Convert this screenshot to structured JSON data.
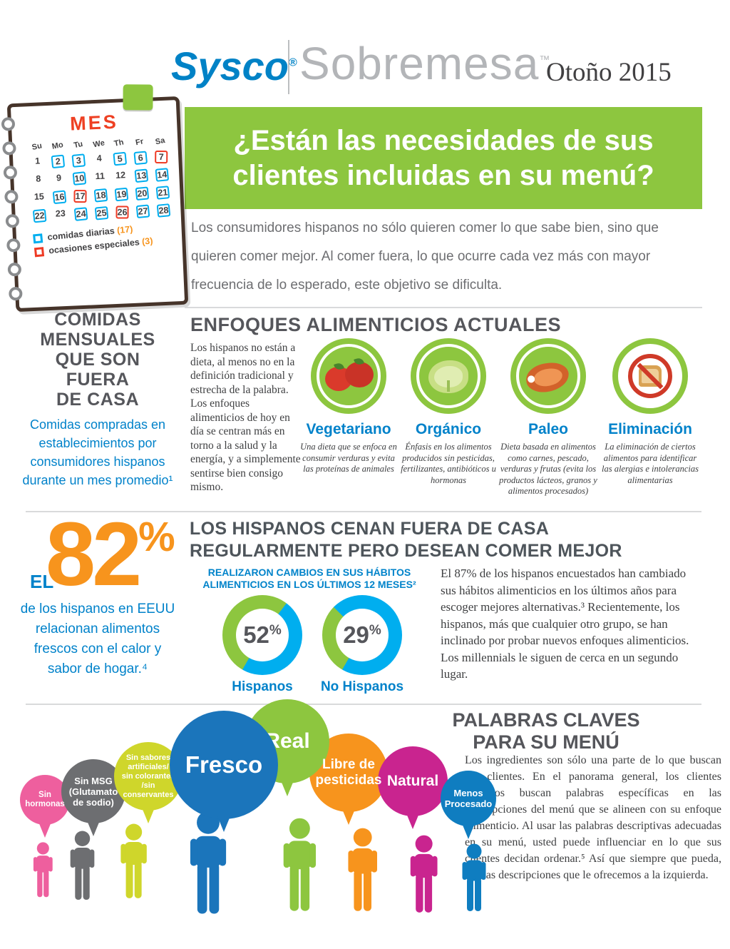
{
  "header": {
    "brand": "Sysco",
    "brand_reg": "®",
    "wordmark": "Sobremesa",
    "wordmark_tm": "™",
    "edition": "Otoño 2015",
    "banner_title": "¿Están las necesidades de sus\nclientes incluidas en su menú?",
    "banner_color": "#8dc63f"
  },
  "calendar": {
    "title": "MES",
    "day_headers": [
      "Su",
      "Mo",
      "Tu",
      "We",
      "Th",
      "Fr",
      "Sa"
    ],
    "days": [
      {
        "n": 1,
        "m": "-"
      },
      {
        "n": 2,
        "m": "b"
      },
      {
        "n": 3,
        "m": "b"
      },
      {
        "n": 4,
        "m": "-"
      },
      {
        "n": 5,
        "m": "b"
      },
      {
        "n": 6,
        "m": "b"
      },
      {
        "n": 7,
        "m": "r"
      },
      {
        "n": 8,
        "m": "-"
      },
      {
        "n": 9,
        "m": "-"
      },
      {
        "n": 10,
        "m": "b"
      },
      {
        "n": 11,
        "m": "-"
      },
      {
        "n": 12,
        "m": "-"
      },
      {
        "n": 13,
        "m": "b"
      },
      {
        "n": 14,
        "m": "b"
      },
      {
        "n": 15,
        "m": "-"
      },
      {
        "n": 16,
        "m": "b"
      },
      {
        "n": 17,
        "m": "r"
      },
      {
        "n": 18,
        "m": "b"
      },
      {
        "n": 19,
        "m": "b"
      },
      {
        "n": 20,
        "m": "b"
      },
      {
        "n": 21,
        "m": "b"
      },
      {
        "n": 22,
        "m": "b"
      },
      {
        "n": 23,
        "m": "-"
      },
      {
        "n": 24,
        "m": "b"
      },
      {
        "n": 25,
        "m": "b"
      },
      {
        "n": 26,
        "m": "r"
      },
      {
        "n": 27,
        "m": "b"
      },
      {
        "n": 28,
        "m": "b"
      }
    ],
    "mark_colors": {
      "blue": "#00aeef",
      "red": "#ee3a24"
    },
    "legend": [
      {
        "label": "comidas diarias",
        "count": "(17)",
        "color": "#00aeef"
      },
      {
        "label": "ocasiones especiales",
        "count": "(3)",
        "color": "#ee3a24"
      }
    ]
  },
  "intro": {
    "text": "Los consumidores hispanos no sólo quieren comer lo que sabe bien, sino que quieren comer mejor.  Al comer fuera, lo que ocurre cada vez más con mayor frecuencia de lo esperado, este objetivo se dificulta."
  },
  "left_column": {
    "heading": "COMIDAS\nMENSUALES\nQUE SON\nFUERA\nDE CASA",
    "subtext": "Comidas compradas en establecimientos por consumidores hispanos durante un mes promedio¹"
  },
  "enfoques": {
    "heading": "ENFOQUES ALIMENTICIOS ACTUALES",
    "paragraph": "Los hispanos no están a dieta, al menos no en la definición tradicional y estrecha de la palabra. Los enfoques alimenticios de hoy en día se centran más en torno a la salud y la energía, y a simplemente sentirse bien consigo mismo.",
    "items": [
      {
        "label": "Vegetariano",
        "icon": "tomato-icon",
        "desc": "Una dieta que se enfoca en consumir verduras y evita las proteínas de animales"
      },
      {
        "label": "Orgánico",
        "icon": "lettuce-icon",
        "desc": "Énfasis en los alimentos producidos sin pesticidas, fertilizantes, antibióticos u hormonas"
      },
      {
        "label": "Paleo",
        "icon": "meat-icon",
        "desc": "Dieta basada en alimentos como carnes, pescado, verduras y frutas (evita los productos lácteos, granos y alimentos procesados)"
      },
      {
        "label": "Eliminación",
        "icon": "no-bread-icon",
        "desc": "La eliminación de ciertos alimentos para identificar las alergias e intolerancias alimentarias"
      }
    ]
  },
  "stat82": {
    "prefix": "EL",
    "value": "82",
    "percent": "%",
    "text": "de los hispanos en EEUU relacionan alimentos frescos con el calor y sabor de hogar.⁴",
    "color": "#f7941d"
  },
  "dining": {
    "heading": "LOS HISPANOS CENAN FUERA DE CASA\nREGULARMENTE PERO DESEAN COMER MEJOR",
    "paragraph": "El 87% de los hispanos encuestados han cambiado sus hábitos alimenticios en los últimos años para escoger mejores alternativas.³ Recientemente, los hispanos, más que cualquier otro grupo, se han inclinado por probar nuevos enfoques alimenticios. Los millennials le siguen de cerca en un segundo lugar."
  },
  "chart_data": {
    "type": "pie",
    "title": "REALIZARON CAMBIOS EN SUS HÁBITOS\nALIMENTICIOS EN LOS ÚLTIMOS 12 MESES²",
    "donuts": [
      {
        "label": "Hispanos",
        "value": 52,
        "unit": "%"
      },
      {
        "label": "No Hispanos",
        "value": 29,
        "unit": "%"
      }
    ],
    "colors": {
      "value_color": "#8dc63f",
      "remainder_color": "#00aeef"
    }
  },
  "keywords": {
    "heading": "PALABRAS CLAVES\nPARA SU MENÚ",
    "paragraph": "Los ingredientes son sólo una parte de lo que buscan sus clientes. En el panorama general, los clientes hispanos buscan palabras específicas en las descripciones del menú que se alineen con su enfoque alimenticio. Al usar las palabras descriptivas adecuadas en su menú, usted puede influenciar en lo que sus clientes decidan ordenar.⁵ Así que siempre que pueda, use las descripciones que le ofrecemos a la izquierda.",
    "bubbles": [
      {
        "label": "Sin\nhormonas",
        "color": "#ee5f9e"
      },
      {
        "label": "Sin MSG\n(Glutamato\nde sodio)",
        "color": "#6d6e71"
      },
      {
        "label": "Sin sabores\nartificiales/\nsin colorantes\n/sin\nconservantes",
        "color": "#cfd62b"
      },
      {
        "label": "Fresco",
        "color": "#1b75bb"
      },
      {
        "label": "Real",
        "color": "#8dc63f"
      },
      {
        "label": "Libre de\npesticidas",
        "color": "#f7941d"
      },
      {
        "label": "Natural",
        "color": "#c9248f"
      },
      {
        "label": "Menos\nProcesado",
        "color": "#0f7dc0"
      }
    ]
  }
}
